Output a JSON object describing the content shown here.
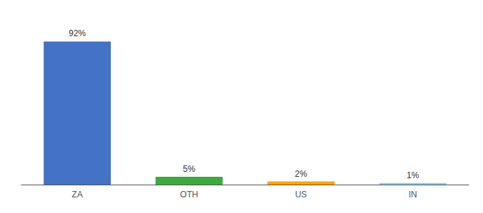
{
  "chart_data": {
    "type": "bar",
    "categories": [
      "ZA",
      "OTH",
      "US",
      "IN"
    ],
    "values": [
      92,
      5,
      2,
      1
    ],
    "value_labels": [
      "92%",
      "5%",
      "2%",
      "1%"
    ],
    "colors": [
      "#4472C4",
      "#3DAA3D",
      "#FFA500",
      "#87CEEB"
    ],
    "ylim": [
      0,
      105
    ],
    "grid": false,
    "data_labels": true,
    "tick_labels": "x"
  }
}
